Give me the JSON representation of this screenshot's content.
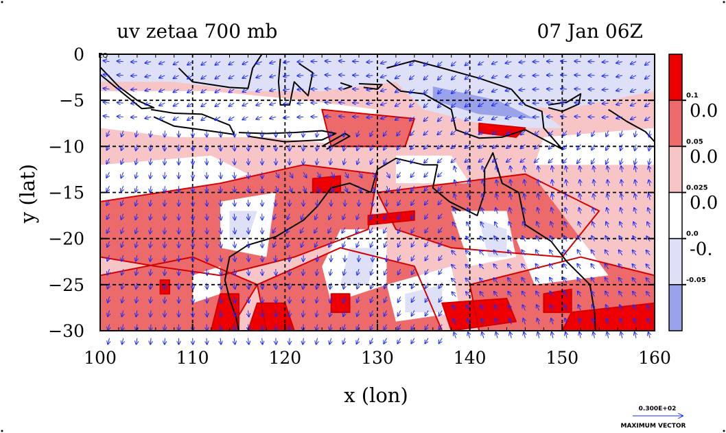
{
  "chart_data": {
    "type": "heatmap",
    "title_left": "uv zetaa 700 mb",
    "title_right": "07 Jan 06Z",
    "xlabel": "x (lon)",
    "ylabel": "y (lat)",
    "xlim": [
      100,
      160
    ],
    "ylim": [
      -30,
      0
    ],
    "x_ticks": [
      {
        "value": 100,
        "label": "100"
      },
      {
        "value": 110,
        "label": "110"
      },
      {
        "value": 120,
        "label": "120"
      },
      {
        "value": 130,
        "label": "130"
      },
      {
        "value": 140,
        "label": "140"
      },
      {
        "value": 150,
        "label": "150"
      },
      {
        "value": 160,
        "label": "160"
      }
    ],
    "y_ticks": [
      {
        "value": 0,
        "label": "0"
      },
      {
        "value": -5,
        "label": "−5"
      },
      {
        "value": -10,
        "label": "−10"
      },
      {
        "value": -15,
        "label": "−15"
      },
      {
        "value": -20,
        "label": "−20"
      },
      {
        "value": -25,
        "label": "−25"
      },
      {
        "value": -30,
        "label": "−30"
      }
    ],
    "corner_label": "EQ",
    "grid": true,
    "colorbar": {
      "placement": "right",
      "levels": [
        {
          "color": "#ee0000"
        },
        {
          "color": "#ec6a6a"
        },
        {
          "color": "#f7c5c5"
        },
        {
          "color": "#ffffff"
        },
        {
          "color": "#dde0f7"
        },
        {
          "color": "#9aa2ea"
        }
      ],
      "small_labels": [
        "0.1",
        "0.05",
        "0.025",
        "0.0",
        "-0.05"
      ],
      "big_labels": [
        "0.0",
        "0.0",
        "0.0",
        "-0."
      ]
    },
    "vector_key": {
      "value_label": "0.300E+02",
      "caption": "MAXIMUM VECTOR"
    },
    "vector_color": "#1a2bff",
    "coast_color": "#000000"
  }
}
